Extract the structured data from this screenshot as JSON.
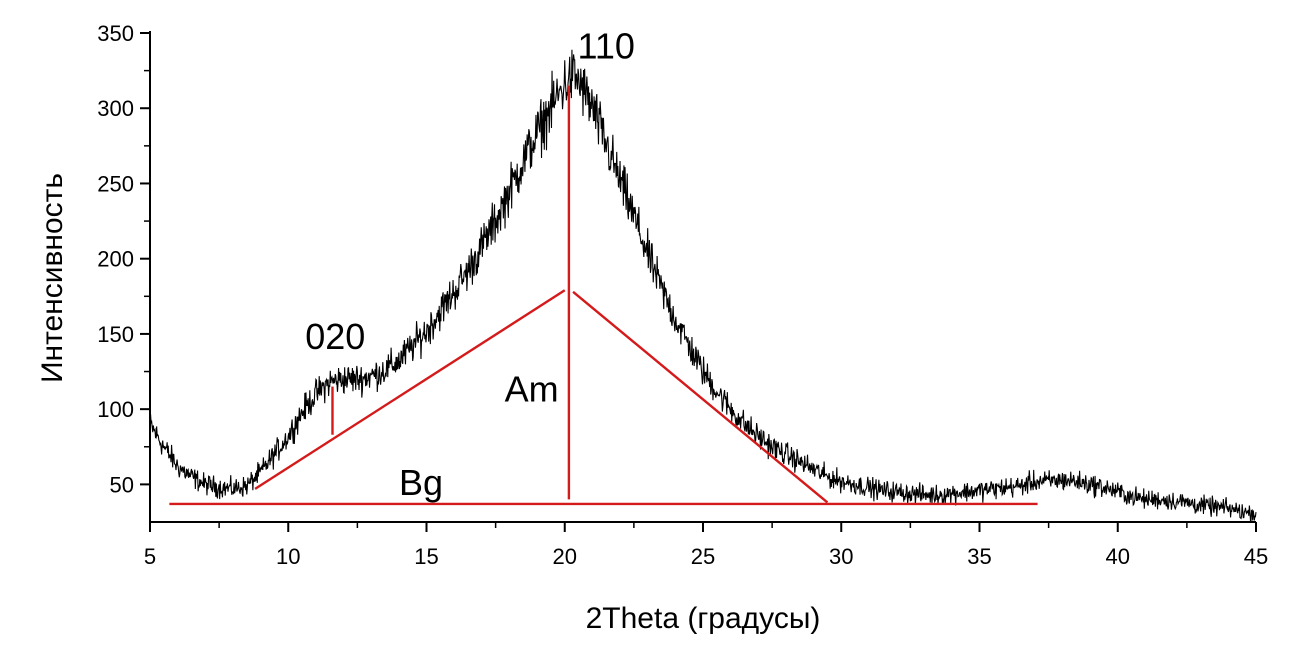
{
  "chart_data": {
    "type": "line",
    "xlabel": "2Theta (градусы)",
    "ylabel": "Интенсивность",
    "xlim": [
      5,
      45
    ],
    "ylim": [
      25,
      350
    ],
    "x_ticks": [
      5,
      10,
      15,
      20,
      25,
      30,
      35,
      40,
      45
    ],
    "y_ticks": [
      50,
      100,
      150,
      200,
      250,
      300,
      350
    ],
    "line_color": "#000000",
    "annotation_color": "#d41a1a",
    "series": [
      {
        "x": [
          5.0,
          5.5,
          6.0,
          6.5,
          7.0,
          7.5,
          8.0,
          8.5,
          9.0,
          9.5,
          10.0,
          10.5,
          11.0,
          11.5,
          12.0,
          12.5,
          13.0,
          13.5,
          14.0,
          14.5,
          15.0,
          15.5,
          16.0,
          16.5,
          17.0,
          17.5,
          18.0,
          18.5,
          19.0,
          19.5,
          20.0,
          20.3,
          20.5,
          21.0,
          21.5,
          22.0,
          22.5,
          23.0,
          23.5,
          24.0,
          24.5,
          25.0,
          25.5,
          26.0,
          26.5,
          27.0,
          27.5,
          28.0,
          28.5,
          29.0,
          29.5,
          30.0,
          30.5,
          31.0,
          31.5,
          32.0,
          32.5,
          33.0,
          33.5,
          34.0,
          34.5,
          35.0,
          35.5,
          36.0,
          36.5,
          37.0,
          37.5,
          38.0,
          38.5,
          39.0,
          39.5,
          40.0,
          40.5,
          41.0,
          41.5,
          42.0,
          42.5,
          43.0,
          43.5,
          44.0,
          44.5,
          45.0
        ],
        "y": [
          90,
          75,
          62,
          55,
          50,
          48,
          47,
          49,
          58,
          70,
          82,
          98,
          110,
          118,
          120,
          120,
          122,
          126,
          132,
          142,
          152,
          165,
          178,
          192,
          208,
          225,
          245,
          265,
          283,
          300,
          316,
          322,
          318,
          300,
          276,
          252,
          228,
          203,
          180,
          160,
          142,
          125,
          112,
          100,
          90,
          82,
          75,
          70,
          65,
          60,
          55,
          52,
          50,
          48,
          46,
          45,
          44,
          43,
          43,
          44,
          45,
          46,
          47,
          48,
          49,
          52,
          52,
          53,
          52,
          50,
          48,
          45,
          42,
          40,
          40,
          39,
          38,
          36,
          35,
          34,
          32,
          30
        ]
      }
    ],
    "annotations": [
      {
        "text": "020",
        "x": 11.7,
        "y": 140
      },
      {
        "text": "110",
        "x": 21.5,
        "y": 333
      },
      {
        "text": "Am",
        "x": 18.8,
        "y": 105
      },
      {
        "text": "Bg",
        "x": 14.8,
        "y": 43
      }
    ],
    "red_lines": [
      {
        "x1": 5.7,
        "y1": 37,
        "x2": 37.1,
        "y2": 37
      },
      {
        "x1": 8.8,
        "y1": 47,
        "x2": 20.0,
        "y2": 179
      },
      {
        "x1": 20.3,
        "y1": 178,
        "x2": 29.5,
        "y2": 38
      },
      {
        "x1": 20.15,
        "y1": 40,
        "x2": 20.15,
        "y2": 315
      },
      {
        "x1": 11.6,
        "y1": 83,
        "x2": 11.6,
        "y2": 115
      }
    ]
  }
}
